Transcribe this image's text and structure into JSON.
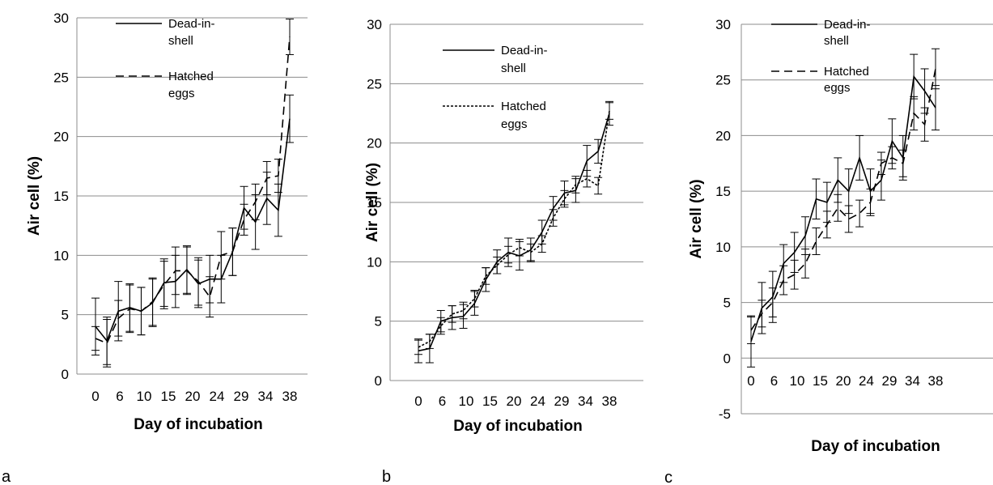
{
  "chart_data": [
    {
      "type": "line",
      "panel_label": "a",
      "xlabel": "Day of incubation",
      "ylabel": "Air cell (%)",
      "ylim": [
        0,
        30
      ],
      "yticks": [
        0,
        5,
        10,
        15,
        20,
        25,
        30
      ],
      "x_tick_labels": [
        "0",
        "6",
        "10",
        "15",
        "20",
        "24",
        "29",
        "34",
        "38"
      ],
      "grid": "horizontal",
      "legend_position": "top-right",
      "series": [
        {
          "name_lines": [
            "Dead-in-",
            "shell"
          ],
          "style": "solid",
          "values": [
            4.0,
            2.8,
            5.3,
            5.6,
            5.3,
            6.0,
            7.7,
            7.8,
            8.8,
            7.6,
            8.0,
            8.0,
            10.3,
            14.0,
            12.8,
            14.8,
            13.8,
            21.5
          ],
          "errors": [
            2.4,
            2.0,
            2.5,
            2.0,
            2.0,
            2.0,
            2.0,
            2.2,
            2.0,
            2.0,
            2.0,
            2.0,
            2.0,
            1.8,
            2.3,
            2.2,
            2.2,
            2.0
          ]
        },
        {
          "name_lines": [
            "Hatched",
            "eggs"
          ],
          "style": "dashed",
          "values": [
            3.0,
            2.6,
            4.7,
            5.5,
            5.3,
            6.1,
            7.5,
            8.7,
            8.7,
            7.8,
            6.5,
            10.0,
            10.3,
            13.0,
            14.5,
            16.5,
            16.7,
            28.4
          ],
          "errors": [
            1.0,
            2.0,
            1.5,
            2.0,
            2.0,
            2.0,
            2.0,
            2.0,
            2.0,
            2.0,
            1.7,
            2.0,
            2.0,
            1.3,
            1.5,
            1.4,
            1.4,
            1.5
          ]
        }
      ]
    },
    {
      "type": "line",
      "panel_label": "b",
      "xlabel": "Day of incubation",
      "ylabel": "Air cell (%)",
      "ylim": [
        0,
        30
      ],
      "yticks": [
        0,
        5,
        10,
        15,
        20,
        25,
        30
      ],
      "x_tick_labels": [
        "0",
        "6",
        "10",
        "15",
        "20",
        "24",
        "29",
        "34",
        "38"
      ],
      "grid": "horizontal",
      "legend_position": "top-right",
      "series": [
        {
          "name_lines": [
            "Dead-in-",
            "shell"
          ],
          "style": "solid",
          "values": [
            2.5,
            2.7,
            5.0,
            5.3,
            5.4,
            6.5,
            8.5,
            10.0,
            10.8,
            10.5,
            11.0,
            12.5,
            14.5,
            15.8,
            16.0,
            18.5,
            19.3,
            22.5
          ],
          "errors": [
            1.0,
            1.2,
            0.9,
            1.0,
            1.0,
            1.0,
            1.0,
            1.0,
            1.2,
            1.2,
            1.0,
            1.0,
            1.0,
            1.0,
            1.0,
            1.3,
            1.0,
            1.0
          ]
        },
        {
          "name_lines": [
            "Hatched",
            "eggs"
          ],
          "style": "dotted",
          "values": [
            2.8,
            3.3,
            4.6,
            5.6,
            5.9,
            6.9,
            8.8,
            9.7,
            10.6,
            11.2,
            10.8,
            11.5,
            13.7,
            15.3,
            16.5,
            17.0,
            16.4,
            22.7
          ],
          "errors": [
            0.6,
            0.6,
            0.7,
            0.7,
            0.7,
            0.7,
            0.7,
            0.7,
            0.7,
            0.7,
            0.7,
            0.7,
            0.7,
            0.7,
            0.7,
            0.7,
            0.7,
            0.7
          ]
        }
      ]
    },
    {
      "type": "line",
      "panel_label": "c",
      "xlabel": "Day of incubation",
      "ylabel": "Air cell (%)",
      "ylim": [
        -5,
        30
      ],
      "yticks": [
        -5,
        0,
        5,
        10,
        15,
        20,
        25,
        30
      ],
      "x_tick_labels": [
        "0",
        "6",
        "10",
        "15",
        "20",
        "24",
        "29",
        "34",
        "38"
      ],
      "grid": "horizontal",
      "legend_position": "top-right",
      "series": [
        {
          "name_lines": [
            "Dead-in-",
            "shell"
          ],
          "style": "solid",
          "values": [
            1.5,
            4.5,
            5.5,
            8.5,
            9.5,
            11.0,
            14.3,
            14.0,
            16.0,
            15.0,
            18.0,
            15.0,
            16.0,
            19.5,
            18.0,
            25.3,
            24.0,
            22.5
          ],
          "errors": [
            2.3,
            2.3,
            2.3,
            1.7,
            1.8,
            1.7,
            1.8,
            1.8,
            2.0,
            2.0,
            2.0,
            2.0,
            1.8,
            2.0,
            2.0,
            2.0,
            2.0,
            2.0
          ]
        },
        {
          "name_lines": [
            "Hatched",
            "eggs"
          ],
          "style": "dashed",
          "values": [
            2.5,
            4.0,
            5.0,
            7.0,
            7.5,
            8.5,
            10.5,
            12.0,
            13.5,
            12.5,
            13.0,
            14.0,
            17.5,
            18.0,
            17.5,
            22.0,
            21.0,
            26.0
          ],
          "errors": [
            1.2,
            1.2,
            1.3,
            1.3,
            1.3,
            1.3,
            1.2,
            1.2,
            1.2,
            1.2,
            1.2,
            1.2,
            1.0,
            1.0,
            1.2,
            1.5,
            1.5,
            1.8
          ]
        }
      ]
    }
  ]
}
